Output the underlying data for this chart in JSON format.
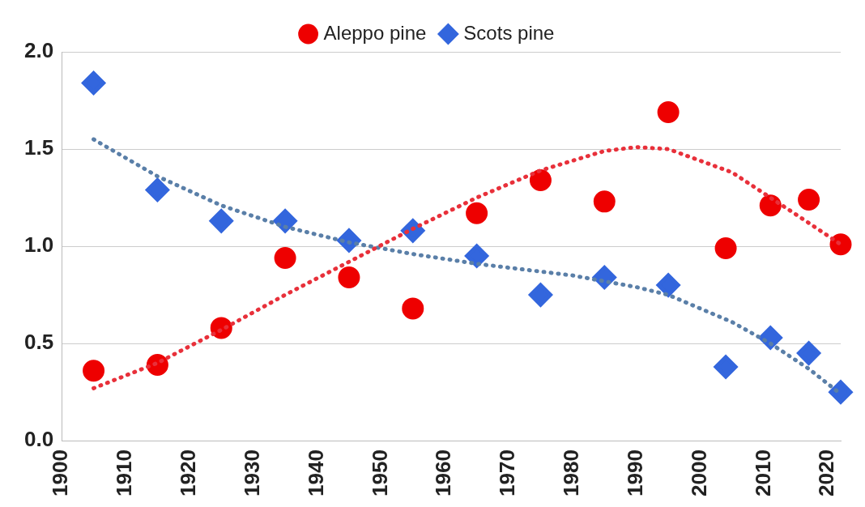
{
  "chart_data": {
    "type": "scatter",
    "xlim": [
      1900,
      2022
    ],
    "xticks": [
      1900,
      1910,
      1920,
      1930,
      1940,
      1950,
      1960,
      1970,
      1980,
      1990,
      2000,
      2010,
      2020
    ],
    "ylim": [
      0,
      2
    ],
    "yticks": [
      {
        "value": 0,
        "label": "0.0"
      },
      {
        "value": 0.5,
        "label": "0.5"
      },
      {
        "value": 1,
        "label": "1.0"
      },
      {
        "value": 1.5,
        "label": "1.5"
      },
      {
        "value": 2,
        "label": "2.0"
      }
    ],
    "grid": "y",
    "legend": "top",
    "series": [
      {
        "name": "Aleppo pine",
        "color": "#ee0000",
        "marker": "circle",
        "x": [
          1905,
          1915,
          1925,
          1935,
          1945,
          1955,
          1965,
          1975,
          1985,
          1995,
          2004,
          2011,
          2017,
          2022
        ],
        "values": [
          0.36,
          0.39,
          0.58,
          0.94,
          0.84,
          0.68,
          1.17,
          1.34,
          1.23,
          1.69,
          0.99,
          1.21,
          1.24,
          1.01
        ]
      },
      {
        "name": "Scots pine",
        "color": "#3366dd",
        "marker": "diamond",
        "x": [
          1905,
          1915,
          1925,
          1935,
          1945,
          1955,
          1965,
          1975,
          1985,
          1995,
          2004,
          2011,
          2017,
          2022
        ],
        "values": [
          1.84,
          1.29,
          1.13,
          1.13,
          1.03,
          1.08,
          0.95,
          0.75,
          0.84,
          0.8,
          0.38,
          0.53,
          0.45,
          0.25
        ]
      },
      {
        "type": "line",
        "color": "#e8303a",
        "line_style": "dotted",
        "marker": "none",
        "x": [
          1905,
          1915,
          1925,
          1935,
          1945,
          1955,
          1965,
          1975,
          1985,
          1990,
          1995,
          2005,
          2011,
          2017,
          2022
        ],
        "values": [
          0.27,
          0.4,
          0.57,
          0.75,
          0.92,
          1.09,
          1.25,
          1.39,
          1.49,
          1.51,
          1.5,
          1.38,
          1.25,
          1.12,
          1.01
        ]
      },
      {
        "type": "line",
        "color": "#5a7fa8",
        "line_style": "dotted",
        "marker": "none",
        "x": [
          1905,
          1915,
          1925,
          1935,
          1945,
          1955,
          1965,
          1975,
          1980,
          1990,
          1995,
          2005,
          2011,
          2017,
          2022
        ],
        "values": [
          1.55,
          1.36,
          1.21,
          1.1,
          1.02,
          0.96,
          0.91,
          0.87,
          0.85,
          0.79,
          0.75,
          0.61,
          0.5,
          0.37,
          0.24
        ]
      }
    ]
  }
}
